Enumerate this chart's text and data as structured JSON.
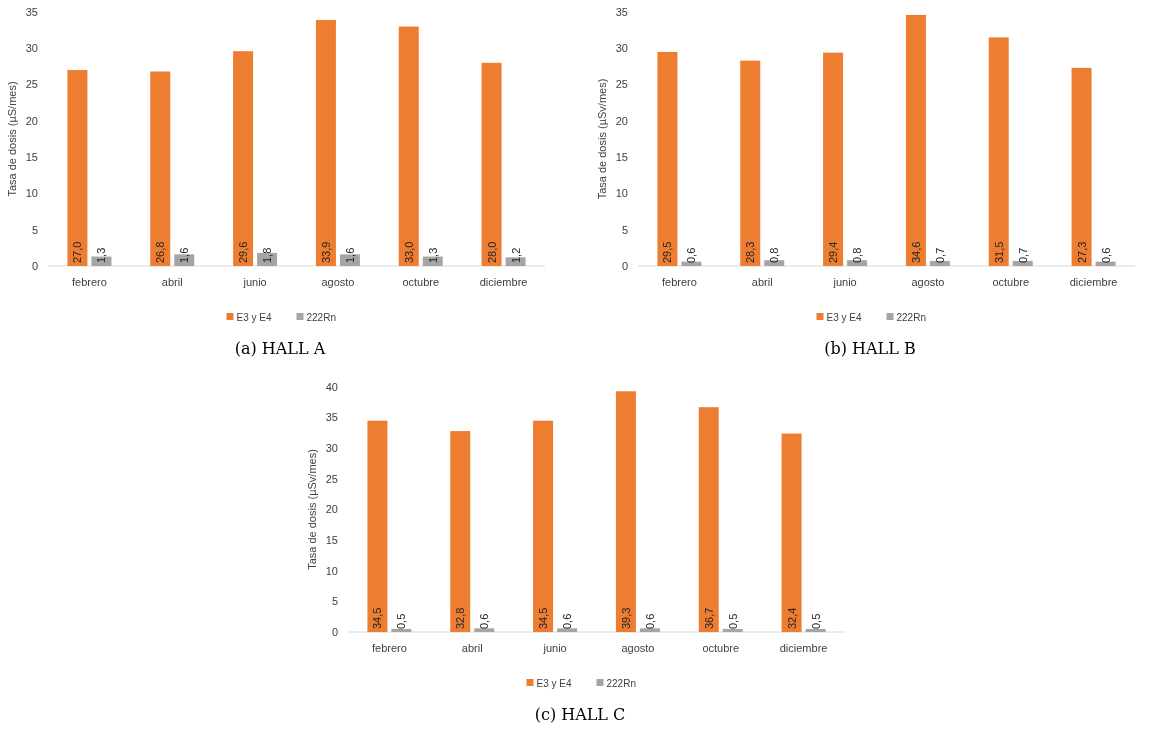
{
  "chart_data": [
    {
      "type": "bar",
      "title": "(a) HALL A",
      "ylabel": "Tasa de dosis (µS/mes)",
      "categories": [
        "febrero",
        "abril",
        "junio",
        "agosto",
        "octubre",
        "diciembre"
      ],
      "ylim": [
        0,
        35
      ],
      "yticks": [
        0,
        5,
        10,
        15,
        20,
        25,
        30,
        35
      ],
      "grid": false,
      "legend": "bottom",
      "series": [
        {
          "name": "E3 y E4",
          "color": "#ed7d31",
          "values": [
            27.0,
            26.8,
            29.6,
            33.9,
            33.0,
            28.0
          ],
          "value_labels": [
            "27,0",
            "26,8",
            "29,6",
            "33,9",
            "33,0",
            "28,0"
          ]
        },
        {
          "name": "222Rn",
          "color": "#a5a5a5",
          "values": [
            1.3,
            1.6,
            1.8,
            1.6,
            1.3,
            1.2
          ],
          "value_labels": [
            "1,3",
            "1,6",
            "1,8",
            "1,6",
            "1,3",
            "1,2"
          ]
        }
      ]
    },
    {
      "type": "bar",
      "title": "(b) HALL B",
      "ylabel": "Tasa de dosis (µSv/mes)",
      "categories": [
        "febrero",
        "abril",
        "junio",
        "agosto",
        "octubre",
        "diciembre"
      ],
      "ylim": [
        0,
        35
      ],
      "yticks": [
        0,
        5,
        10,
        15,
        20,
        25,
        30,
        35
      ],
      "grid": false,
      "legend": "bottom",
      "series": [
        {
          "name": "E3 y E4",
          "color": "#ed7d31",
          "values": [
            29.5,
            28.3,
            29.4,
            34.6,
            31.5,
            27.3
          ],
          "value_labels": [
            "29,5",
            "28,3",
            "29,4",
            "34,6",
            "31,5",
            "27,3"
          ]
        },
        {
          "name": "222Rn",
          "color": "#a5a5a5",
          "values": [
            0.6,
            0.8,
            0.8,
            0.7,
            0.7,
            0.6
          ],
          "value_labels": [
            "0,6",
            "0,8",
            "0,8",
            "0,7",
            "0,7",
            "0,6"
          ]
        }
      ]
    },
    {
      "type": "bar",
      "title": "(c) HALL C",
      "ylabel": "Tasa de dosis (µSv/mes)",
      "categories": [
        "febrero",
        "abril",
        "junio",
        "agosto",
        "octubre",
        "diciembre"
      ],
      "ylim": [
        0,
        40
      ],
      "yticks": [
        0,
        5,
        10,
        15,
        20,
        25,
        30,
        35,
        40
      ],
      "grid": false,
      "legend": "bottom",
      "series": [
        {
          "name": "E3 y E4",
          "color": "#ed7d31",
          "values": [
            34.5,
            32.8,
            34.5,
            39.3,
            36.7,
            32.4
          ],
          "value_labels": [
            "34,5",
            "32,8",
            "34,5",
            "39,3",
            "36,7",
            "32,4"
          ]
        },
        {
          "name": "222Rn",
          "color": "#a5a5a5",
          "values": [
            0.5,
            0.6,
            0.6,
            0.6,
            0.5,
            0.5
          ],
          "value_labels": [
            "0,5",
            "0,6",
            "0,6",
            "0,6",
            "0,5",
            "0,5"
          ]
        }
      ]
    }
  ]
}
